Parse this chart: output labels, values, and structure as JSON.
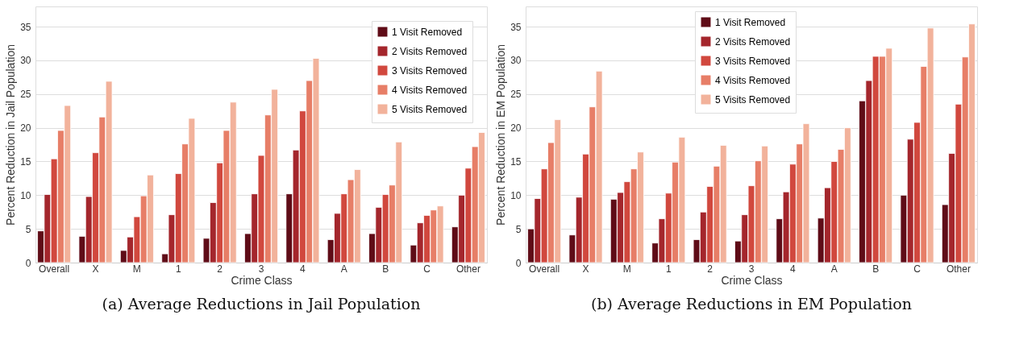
{
  "chart_data": [
    {
      "type": "bar",
      "title": "(a) Average Reductions in Jail Population",
      "xlabel": "Crime Class",
      "ylabel": "Percent Reduction in Jail Population",
      "categories": [
        "Overall",
        "X",
        "M",
        "1",
        "2",
        "3",
        "4",
        "A",
        "B",
        "C",
        "Other"
      ],
      "ylim": [
        0,
        38
      ],
      "yticks": [
        0,
        5,
        10,
        15,
        20,
        25,
        30,
        35
      ],
      "grid": "y",
      "legend": "top right",
      "series": [
        {
          "name": "1 Visit Removed",
          "color": "#5f0c17",
          "values": [
            4.7,
            3.9,
            1.8,
            1.3,
            3.6,
            4.3,
            10.2,
            3.4,
            4.3,
            2.6,
            5.3
          ]
        },
        {
          "name": "2 Visits Removed",
          "color": "#a4262c",
          "values": [
            10.1,
            9.8,
            3.8,
            7.1,
            8.9,
            10.2,
            16.7,
            7.3,
            8.2,
            5.9,
            10.0
          ]
        },
        {
          "name": "3 Visits Removed",
          "color": "#d1483e",
          "values": [
            15.4,
            16.3,
            6.8,
            13.2,
            14.8,
            15.9,
            22.5,
            10.2,
            10.1,
            7.0,
            14.0
          ]
        },
        {
          "name": "4 Visits Removed",
          "color": "#e77e67",
          "values": [
            19.6,
            21.6,
            9.9,
            17.6,
            19.6,
            21.9,
            27.0,
            12.3,
            11.5,
            7.8,
            17.2
          ]
        },
        {
          "name": "5 Visits Removed",
          "color": "#f2b29b",
          "values": [
            23.3,
            26.9,
            13.0,
            21.4,
            23.8,
            25.7,
            30.3,
            13.8,
            17.9,
            8.4,
            19.3
          ]
        }
      ]
    },
    {
      "type": "bar",
      "title": "(b) Average Reductions in EM Population",
      "xlabel": "Crime Class",
      "ylabel": "Percent Reduction in EM Population",
      "categories": [
        "Overall",
        "X",
        "M",
        "1",
        "2",
        "3",
        "4",
        "A",
        "B",
        "C",
        "Other"
      ],
      "ylim": [
        0,
        38
      ],
      "yticks": [
        0,
        5,
        10,
        15,
        20,
        25,
        30,
        35
      ],
      "grid": "y",
      "legend": "top",
      "series": [
        {
          "name": "1 Visit Removed",
          "color": "#5f0c17",
          "values": [
            5.0,
            4.1,
            9.4,
            2.9,
            3.4,
            3.2,
            6.5,
            6.6,
            24.0,
            10.0,
            8.6
          ]
        },
        {
          "name": "2 Visits Removed",
          "color": "#a4262c",
          "values": [
            9.5,
            9.7,
            10.4,
            6.5,
            7.5,
            7.1,
            10.5,
            11.1,
            27.0,
            18.3,
            16.2
          ]
        },
        {
          "name": "3 Visits Removed",
          "color": "#d1483e",
          "values": [
            13.9,
            16.1,
            12.0,
            10.3,
            11.3,
            11.4,
            14.6,
            15.0,
            30.6,
            20.8,
            23.5
          ]
        },
        {
          "name": "4 Visits Removed",
          "color": "#e77e67",
          "values": [
            17.8,
            23.1,
            13.9,
            14.9,
            14.3,
            15.1,
            17.6,
            16.8,
            30.6,
            29.1,
            30.5
          ]
        },
        {
          "name": "5 Visits Removed",
          "color": "#f2b29b",
          "values": [
            21.2,
            28.4,
            16.4,
            18.6,
            17.4,
            17.3,
            20.6,
            20.0,
            31.8,
            34.8,
            35.4
          ]
        }
      ]
    }
  ]
}
